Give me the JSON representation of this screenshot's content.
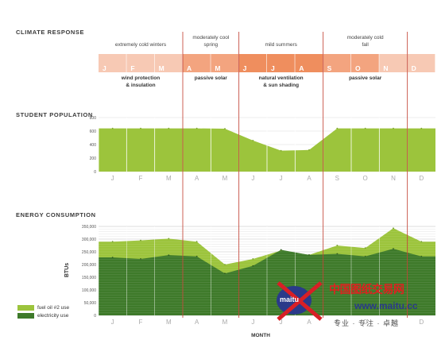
{
  "months": [
    "J",
    "F",
    "M",
    "A",
    "M",
    "J",
    "J",
    "A",
    "S",
    "O",
    "N",
    "D"
  ],
  "climate": {
    "title": "CLIMATE RESPONSE",
    "seasons": [
      "extremely cold winters",
      "moderately cool spring",
      "mild summers",
      "moderately cold fall"
    ],
    "strategies": [
      "wind protection & insulation",
      "passive solar",
      "natural ventilation & sun shading",
      "passive solar"
    ],
    "month_colors": [
      "#f7c9b4",
      "#f7c9b4",
      "#f7c9b4",
      "#f3a47f",
      "#f3a47f",
      "#ef8e5e",
      "#ef8e5e",
      "#ef8e5e",
      "#f3a47f",
      "#f3a47f",
      "#f7c9b4",
      "#f7c9b4"
    ]
  },
  "population": {
    "title": "STUDENT POPULATION"
  },
  "energy": {
    "title": "ENERGY CONSUMPTION",
    "xlabel": "MONTH",
    "ylabel": "BTUs"
  },
  "legend": {
    "fuel": "fuel oil #2 use",
    "electricity": "electricity use"
  },
  "watermark": {
    "cn": "中国图纸交易网",
    "url": "www.maitu.cc",
    "tag": "专业 · 专注 · 卓越",
    "logo": "maitu"
  },
  "colors": {
    "light_green": "#9cc43c",
    "dark_green": "#3e7a2a",
    "red_line": "#c0392b"
  },
  "chart_data": [
    {
      "type": "area",
      "title": "STUDENT POPULATION",
      "categories": [
        "J",
        "F",
        "M",
        "A",
        "M",
        "J",
        "J",
        "A",
        "S",
        "O",
        "N",
        "D"
      ],
      "yticks": [
        0,
        200,
        400,
        600,
        800
      ],
      "ylim": [
        0,
        800
      ],
      "values": [
        640,
        640,
        640,
        640,
        635,
        460,
        310,
        320,
        640,
        640,
        640,
        640
      ]
    },
    {
      "type": "area",
      "title": "ENERGY CONSUMPTION",
      "xlabel": "MONTH",
      "ylabel": "BTUs",
      "categories": [
        "J",
        "F",
        "M",
        "A",
        "M",
        "J",
        "J",
        "A",
        "S",
        "O",
        "N",
        "D"
      ],
      "yticks": [
        0,
        50000,
        100000,
        150000,
        200000,
        250000,
        300000,
        350000
      ],
      "ytick_labels": [
        "0",
        "50,000",
        "100,000",
        "150,000",
        "200,000",
        "250,000",
        "300,000",
        "350,000"
      ],
      "ylim": [
        0,
        350000
      ],
      "series": [
        {
          "name": "fuel oil #2 use",
          "values": [
            290000,
            295000,
            302000,
            290000,
            200000,
            222000,
            255000,
            238000,
            275000,
            265000,
            343000,
            290000
          ]
        },
        {
          "name": "electricity use",
          "values": [
            228000,
            222000,
            237000,
            232000,
            165000,
            195000,
            258000,
            238000,
            242000,
            232000,
            262000,
            232000
          ]
        }
      ]
    }
  ]
}
